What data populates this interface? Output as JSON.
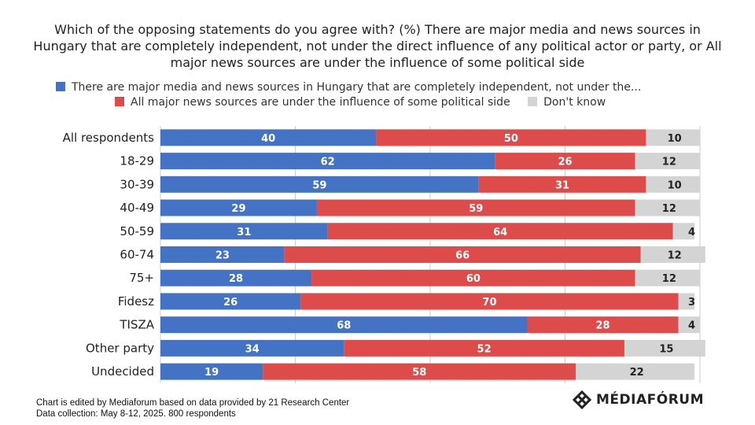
{
  "title": "Which of the opposing statements do you agree with? (%) There are major media and news sources in Hungary that are completely independent, not under the direct influence of any political actor or party, or All major news sources are under the influence of some political side",
  "legend": {
    "independent": "There are major media and news sources in Hungary that are completely independent, not under the...",
    "influenced": "All major news sources are under the influence of some political side",
    "dont_know": "Don't know"
  },
  "colors": {
    "independent": "#4472c4",
    "influenced": "#dd4b4b",
    "dont_know": "#d4d4d4",
    "grid": "#cccccc"
  },
  "footnote": {
    "line1": "Chart is edited by Mediaforum based on data provided by 21 Research Center",
    "line2": "Data collection: May 8-12, 2025. 800 respondents"
  },
  "logo": {
    "text": "MÉDIAFÓRUM",
    "icon": "mediaforum-diamond-icon"
  },
  "chart_data": {
    "type": "bar",
    "orientation": "horizontal",
    "stacked": true,
    "categories": [
      "All respondents",
      "18-29",
      "30-39",
      "40-49",
      "50-59",
      "60-74",
      "75+",
      "Fidesz",
      "TISZA",
      "Other party",
      "Undecided"
    ],
    "series": [
      {
        "name": "There are major media and news sources in Hungary that are completely independent, not under the...",
        "key": "independent",
        "values": [
          40,
          62,
          59,
          29,
          31,
          23,
          28,
          26,
          68,
          34,
          19
        ]
      },
      {
        "name": "All major news sources are under the influence of some political side",
        "key": "influenced",
        "values": [
          50,
          26,
          31,
          59,
          64,
          66,
          60,
          70,
          28,
          52,
          58
        ]
      },
      {
        "name": "Don't know",
        "key": "dont_know",
        "values": [
          10,
          12,
          10,
          12,
          4,
          12,
          12,
          3,
          4,
          15,
          22
        ]
      }
    ],
    "xlim": [
      0,
      100
    ],
    "grid": true,
    "legend_position": "top"
  }
}
